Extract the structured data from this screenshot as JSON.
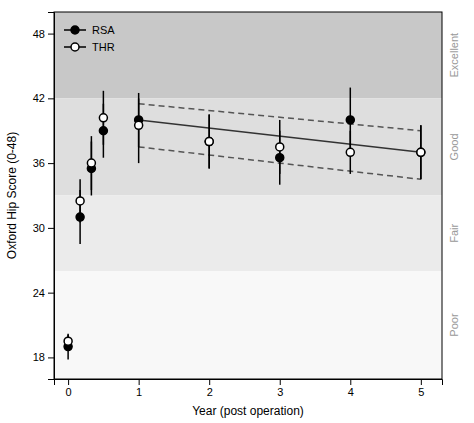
{
  "chart_data": {
    "type": "scatter",
    "x_label": "Year (post operation)",
    "y_label": "Oxford Hip Score (0-48)",
    "xlim": [
      -0.2,
      5.3
    ],
    "ylim": [
      16,
      50
    ],
    "xticks": [
      0,
      1,
      2,
      3,
      4,
      5
    ],
    "yticks": [
      18,
      24,
      30,
      36,
      42,
      48
    ],
    "grid": false,
    "legend": "upper left",
    "series": [
      {
        "name": "RSA",
        "color": "#000000",
        "marker": "circle",
        "x": [
          0,
          0.17,
          0.33,
          0.5,
          1,
          2,
          3,
          4,
          5
        ],
        "values": [
          19.0,
          31.0,
          35.5,
          39.0,
          40.0,
          38.0,
          36.5,
          40.0,
          37.0
        ],
        "error_lo": [
          1.2,
          2.5,
          2.5,
          2.5,
          2.5,
          2.5,
          2.5,
          3.0,
          2.5
        ],
        "error_hi": [
          1.2,
          2.5,
          2.5,
          2.5,
          2.5,
          2.5,
          2.5,
          3.0,
          2.5
        ]
      },
      {
        "name": "THR",
        "color": "#000000",
        "marker": "circle-open",
        "x": [
          0,
          0.17,
          0.33,
          0.5,
          1,
          2,
          3,
          4,
          5
        ],
        "values": [
          19.5,
          32.5,
          36.0,
          40.2,
          39.5,
          38.0,
          37.5,
          37.0,
          37.0
        ],
        "error_lo": [
          0.6,
          2.0,
          2.5,
          2.5,
          3.5,
          2.5,
          2.5,
          2.0,
          2.5
        ],
        "error_hi": [
          0.6,
          2.0,
          2.5,
          2.5,
          2.5,
          2.5,
          2.5,
          2.0,
          2.5
        ]
      }
    ],
    "trend_lines": [
      {
        "x": [
          1,
          5
        ],
        "values": [
          41.5,
          39.0
        ],
        "color": "#555555",
        "line_style": "dashed"
      },
      {
        "x": [
          1,
          5
        ],
        "values": [
          37.5,
          34.5
        ],
        "color": "#555555",
        "line_style": "dashed"
      },
      {
        "x": [
          1,
          5
        ],
        "values": [
          40.0,
          37.0
        ],
        "color": "#333333",
        "line_style": "solid"
      }
    ],
    "zones": [
      {
        "ymin": 42,
        "ymax": 50,
        "color": "#c8c8c8"
      },
      {
        "ymin": 33,
        "ymax": 42,
        "color": "#dedede"
      },
      {
        "ymin": 26,
        "ymax": 33,
        "color": "#ebebeb"
      },
      {
        "ymin": 16,
        "ymax": 26,
        "color": "#f8f8f8"
      }
    ],
    "zone_labels": [
      {
        "label": "Excellent",
        "y": 46,
        "color": "#999999"
      },
      {
        "label": "Good",
        "y": 37.5,
        "color": "#999999"
      },
      {
        "label": "Fair",
        "y": 29.5,
        "color": "#999999"
      },
      {
        "label": "Poor",
        "y": 21.0,
        "color": "#999999"
      }
    ]
  }
}
